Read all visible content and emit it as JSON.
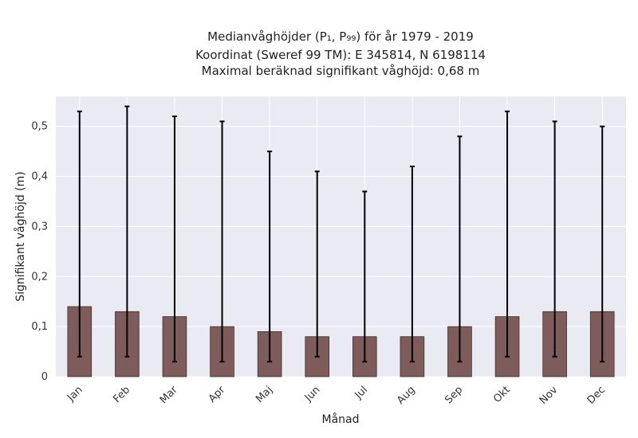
{
  "chart_data": {
    "type": "bar",
    "title_lines": [
      "Medianvåghöjder (P₁, P₉₉) för år 1979 - 2019",
      "Koordinat (Sweref 99 TM): E 345814, N 6198114",
      "Maximal beräknad signifikant våghöjd: 0,68 m"
    ],
    "xlabel": "Månad",
    "ylabel": "Signifikant våghöjd (m)",
    "categories": [
      "Jan",
      "Feb",
      "Mar",
      "Apr",
      "Maj",
      "Jun",
      "Jul",
      "Aug",
      "Sep",
      "Okt",
      "Nov",
      "Dec"
    ],
    "series": [
      {
        "values": [
          0.14,
          0.13,
          0.12,
          0.1,
          0.09,
          0.08,
          0.08,
          0.08,
          0.1,
          0.12,
          0.13,
          0.13
        ],
        "p1": [
          0.04,
          0.04,
          0.03,
          0.03,
          0.03,
          0.04,
          0.03,
          0.03,
          0.03,
          0.04,
          0.04,
          0.03
        ],
        "p99": [
          0.53,
          0.54,
          0.52,
          0.51,
          0.45,
          0.41,
          0.37,
          0.42,
          0.48,
          0.53,
          0.51,
          0.5
        ]
      }
    ],
    "ylim": [
      0,
      0.56
    ],
    "yticks": [
      0,
      0.1,
      0.2,
      0.3,
      0.4,
      0.5
    ],
    "ytick_labels": [
      "0",
      "0,1",
      "0,2",
      "0,3",
      "0,4",
      "0,5"
    ],
    "grid": true,
    "colors": {
      "bar": "#7f5c5c",
      "bar_edge": "#3f2f2f",
      "errorbar": "#000000",
      "plot_bg": "#eaeaf2",
      "grid": "#ffffff"
    }
  }
}
